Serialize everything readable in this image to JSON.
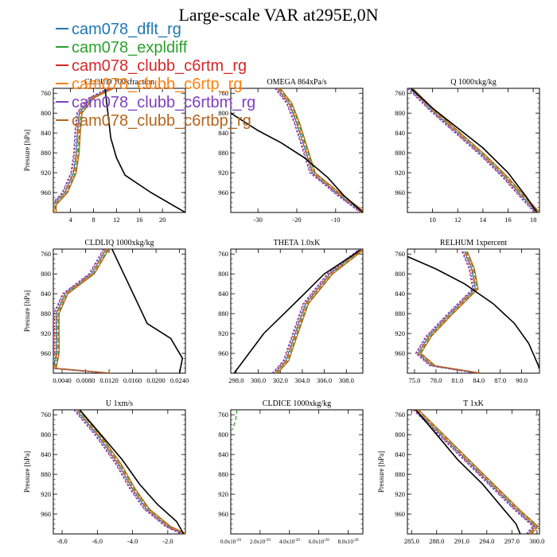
{
  "title": "Large-scale VAR at295E,0N",
  "legend": [
    {
      "label": "cam078_dflt_rg",
      "color": "#1f77b4",
      "dash": ""
    },
    {
      "label": "cam078_expldiff",
      "color": "#2ca02c",
      "dash": "5,3"
    },
    {
      "label": "cam078_clubb_c6rtm_rg",
      "color": "#d62728",
      "dash": "2,2"
    },
    {
      "label": "cam078_clubb_c6rtp_rg",
      "color": "#ff7f0e",
      "dash": "6,2,2,2"
    },
    {
      "label": "cam078_clubb_c6rtbm_rg",
      "color": "#7f3fbf",
      "dash": "3,2"
    },
    {
      "label": "cam078_clubb_c6rtbp_rg",
      "color": "#b5651d",
      "dash": ""
    }
  ],
  "ref_color": "#000000",
  "chart_data": [
    {
      "type": "line",
      "title": "CLOUD  100xfraction",
      "xlabel": "",
      "ylabel": "Pressure [hPa]",
      "xlim": [
        1,
        24
      ],
      "ylim": [
        1000,
        750
      ],
      "xticks": [
        4,
        8,
        12,
        16,
        20
      ],
      "xticklabels": [
        "4",
        "8",
        "12",
        "16",
        "20"
      ],
      "yticks": [
        760,
        800,
        840,
        880,
        920,
        960
      ],
      "ref": [
        [
          10,
          750
        ],
        [
          10.5,
          800
        ],
        [
          11,
          850
        ],
        [
          12,
          890
        ],
        [
          13.5,
          925
        ],
        [
          18,
          960
        ],
        [
          21,
          980
        ],
        [
          24,
          1000
        ]
      ],
      "model": [
        [
          11,
          750
        ],
        [
          7.5,
          770
        ],
        [
          5.5,
          800
        ],
        [
          5.2,
          840
        ],
        [
          5,
          880
        ],
        [
          4.5,
          920
        ],
        [
          3,
          960
        ],
        [
          1,
          985
        ],
        [
          1,
          1000
        ]
      ]
    },
    {
      "type": "line",
      "title": "OMEGA  864xPa/s",
      "xlabel": "",
      "ylabel": "",
      "xlim": [
        -37,
        -3
      ],
      "ylim": [
        1000,
        750
      ],
      "xticks": [
        -30,
        -20,
        -10
      ],
      "xticklabels": [
        "-30",
        "-20",
        "-10"
      ],
      "yticks": [
        760,
        800,
        840,
        880,
        920,
        960
      ],
      "ref": [
        [
          -37,
          800
        ],
        [
          -30,
          835
        ],
        [
          -24,
          860
        ],
        [
          -18,
          890
        ],
        [
          -12,
          930
        ],
        [
          -8,
          965
        ],
        [
          -3,
          1000
        ]
      ],
      "model": [
        [
          -25,
          750
        ],
        [
          -22,
          780
        ],
        [
          -20,
          820
        ],
        [
          -18,
          870
        ],
        [
          -16,
          920
        ],
        [
          -9,
          965
        ],
        [
          -3,
          1000
        ]
      ]
    },
    {
      "type": "line",
      "title": "Q  1000xkg/kg",
      "xlabel": "",
      "ylabel": "",
      "xlim": [
        8,
        18.5
      ],
      "ylim": [
        1000,
        750
      ],
      "xticks": [
        10,
        12,
        14,
        16,
        18
      ],
      "xticklabels": [
        "10",
        "12",
        "14",
        "16",
        "18"
      ],
      "yticks": [
        760,
        800,
        840,
        880,
        920,
        960
      ],
      "ref": [
        [
          8.3,
          750
        ],
        [
          10,
          790
        ],
        [
          12,
          830
        ],
        [
          14,
          870
        ],
        [
          16,
          920
        ],
        [
          17.5,
          970
        ],
        [
          18.3,
          1000
        ]
      ],
      "model": [
        [
          8.2,
          750
        ],
        [
          10,
          795
        ],
        [
          12,
          840
        ],
        [
          14,
          885
        ],
        [
          15.8,
          930
        ],
        [
          17.2,
          970
        ],
        [
          18.3,
          1000
        ]
      ]
    },
    {
      "type": "line",
      "title": "CLDLIQ  1000xkg/kg",
      "xlabel": "",
      "ylabel": "Pressure [hPa]",
      "xlim": [
        0.0025,
        0.025
      ],
      "ylim": [
        1000,
        750
      ],
      "xticks": [
        0.004,
        0.008,
        0.012,
        0.016,
        0.02,
        0.024
      ],
      "xticklabels": [
        "0.0040",
        "0.0080",
        "0.0120",
        "0.0160",
        "0.0200",
        "0.0240"
      ],
      "yticks": [
        760,
        800,
        840,
        880,
        920,
        960
      ],
      "ref": [
        [
          0.0125,
          750
        ],
        [
          0.0145,
          800
        ],
        [
          0.0165,
          850
        ],
        [
          0.0185,
          900
        ],
        [
          0.0225,
          930
        ],
        [
          0.0245,
          970
        ],
        [
          0.024,
          1000
        ]
      ],
      "model": [
        [
          0.0115,
          750
        ],
        [
          0.009,
          800
        ],
        [
          0.0045,
          840
        ],
        [
          0.003,
          880
        ],
        [
          0.003,
          920
        ],
        [
          0.003,
          960
        ],
        [
          0.0025,
          990
        ],
        [
          0.012,
          1000
        ]
      ]
    },
    {
      "type": "line",
      "title": "THETA  1.0xK",
      "xlabel": "",
      "ylabel": "",
      "xlim": [
        297.5,
        309.5
      ],
      "ylim": [
        1000,
        750
      ],
      "xticks": [
        298,
        300,
        302,
        304,
        306,
        308
      ],
      "xticklabels": [
        "298.0",
        "300.0",
        "302.0",
        "304.0",
        "306.0",
        "308.0"
      ],
      "yticks": [
        760,
        800,
        840,
        880,
        920,
        960
      ],
      "ref": [
        [
          297.8,
          1000
        ],
        [
          300.5,
          920
        ],
        [
          303.5,
          855
        ],
        [
          306,
          800
        ],
        [
          309.3,
          752
        ]
      ],
      "model": [
        [
          301.5,
          1000
        ],
        [
          302.5,
          975
        ],
        [
          303.2,
          930
        ],
        [
          304.3,
          860
        ],
        [
          306.5,
          800
        ],
        [
          309.3,
          752
        ]
      ]
    },
    {
      "type": "line",
      "title": "RELHUM  1xpercent",
      "xlabel": "",
      "ylabel": "",
      "xlim": [
        74,
        92.5
      ],
      "ylim": [
        1000,
        750
      ],
      "xticks": [
        75,
        78,
        81,
        84,
        87,
        90
      ],
      "xticklabels": [
        "75.0",
        "78.0",
        "81.0",
        "84.0",
        "87.0",
        "90.0"
      ],
      "yticks": [
        760,
        800,
        840,
        880,
        920,
        960
      ],
      "ref": [
        [
          74,
          765
        ],
        [
          78,
          790
        ],
        [
          82,
          820
        ],
        [
          86,
          860
        ],
        [
          89,
          900
        ],
        [
          91,
          940
        ],
        [
          92.5,
          990
        ]
      ],
      "model": [
        [
          82,
          755
        ],
        [
          83,
          790
        ],
        [
          83.5,
          830
        ],
        [
          80,
          880
        ],
        [
          77,
          925
        ],
        [
          75.5,
          960
        ],
        [
          77.5,
          985
        ],
        [
          84,
          1000
        ]
      ]
    },
    {
      "type": "line",
      "title": "U  1xm/s",
      "xlabel": "",
      "ylabel": "Pressure [hPa]",
      "xlim": [
        -8.5,
        -1
      ],
      "ylim": [
        1000,
        750
      ],
      "xticks": [
        -8,
        -6,
        -4,
        -2
      ],
      "xticklabels": [
        "-8.0",
        "-6.0",
        "-4.0",
        "-2.0"
      ],
      "yticks": [
        760,
        800,
        840,
        880,
        920,
        960
      ],
      "ref": [
        [
          -7,
          750
        ],
        [
          -5.8,
          800
        ],
        [
          -4.6,
          850
        ],
        [
          -3.6,
          900
        ],
        [
          -2.6,
          940
        ],
        [
          -1.5,
          975
        ],
        [
          -1.1,
          1000
        ]
      ],
      "model": [
        [
          -7.2,
          750
        ],
        [
          -6,
          800
        ],
        [
          -4.8,
          860
        ],
        [
          -4,
          910
        ],
        [
          -3.2,
          950
        ],
        [
          -2,
          985
        ],
        [
          -1.1,
          1000
        ]
      ]
    },
    {
      "type": "line",
      "title": "CLDICE  1000xkg/kg",
      "xlabel": "",
      "ylabel": "",
      "xlim": [
        0,
        9e-29
      ],
      "ylim": [
        1000,
        750
      ],
      "xticks": [
        0,
        2e-29,
        4e-29,
        6e-29,
        8e-29
      ],
      "xticklabels": [
        "0.0x10",
        "2.0x10",
        "4.0x10",
        "6.0x10",
        "8.0x10"
      ],
      "xtick_exp": "-29",
      "yticks": [
        760,
        800,
        840,
        880,
        920,
        960
      ],
      "ref": [],
      "model": [
        [
          3e-30,
          750
        ],
        [
          2e-30,
          770
        ],
        [
          0,
          790
        ]
      ]
    },
    {
      "type": "line",
      "title": "T  1xK",
      "xlabel": "",
      "ylabel": "Pressure [hPa]",
      "xlim": [
        284.5,
        300.3
      ],
      "ylim": [
        1000,
        750
      ],
      "xticks": [
        285,
        288,
        291,
        294,
        297,
        300
      ],
      "xticklabels": [
        "285.0",
        "288.0",
        "291.0",
        "294.0",
        "297.0",
        "300.0"
      ],
      "yticks": [
        760,
        800,
        840,
        880,
        920,
        960
      ],
      "ref": [
        [
          285.5,
          750
        ],
        [
          288,
          800
        ],
        [
          290.5,
          850
        ],
        [
          293.5,
          900
        ],
        [
          296,
          950
        ],
        [
          297.5,
          980
        ],
        [
          298,
          1000
        ]
      ],
      "model": [
        [
          285.5,
          750
        ],
        [
          288.5,
          800
        ],
        [
          291.5,
          850
        ],
        [
          294.5,
          900
        ],
        [
          297.5,
          950
        ],
        [
          299.8,
          985
        ],
        [
          299,
          1000
        ]
      ]
    }
  ]
}
